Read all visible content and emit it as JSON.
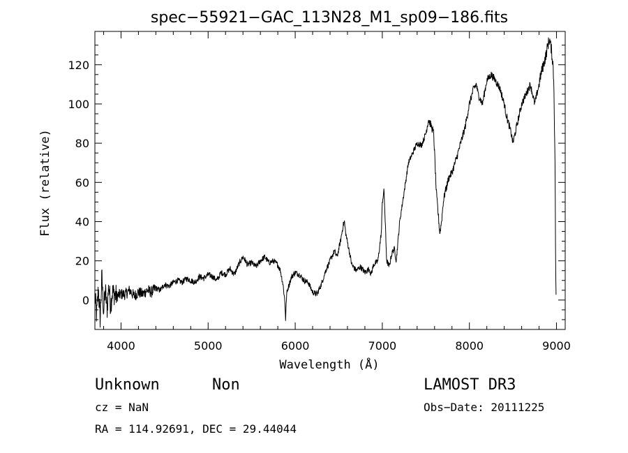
{
  "chart_data": {
    "type": "line",
    "title": "spec−55921−GAC_113N28_M1_sp09−186.fits",
    "xlabel": "Wavelength (Å)",
    "ylabel": "Flux (relative)",
    "xlim": [
      3700,
      9100
    ],
    "ylim": [
      -15,
      137
    ],
    "x_ticks": [
      4000,
      5000,
      6000,
      7000,
      8000,
      9000
    ],
    "y_ticks": [
      0,
      20,
      40,
      60,
      80,
      100,
      120
    ],
    "x_tick_labels": [
      "4000",
      "5000",
      "6000",
      "7000",
      "8000",
      "9000"
    ],
    "y_tick_labels": [
      "0",
      "20",
      "40",
      "60",
      "80",
      "100",
      "120"
    ],
    "grid": false,
    "series": [
      {
        "name": "flux",
        "x": [
          3700,
          3720,
          3740,
          3760,
          3780,
          3800,
          3820,
          3840,
          3860,
          3880,
          3900,
          3950,
          4000,
          4050,
          4100,
          4150,
          4200,
          4250,
          4300,
          4350,
          4400,
          4450,
          4500,
          4550,
          4600,
          4650,
          4700,
          4750,
          4800,
          4850,
          4900,
          4950,
          5000,
          5050,
          5100,
          5150,
          5200,
          5250,
          5300,
          5350,
          5400,
          5430,
          5450,
          5500,
          5550,
          5600,
          5650,
          5700,
          5750,
          5800,
          5830,
          5860,
          5880,
          5890,
          5900,
          5910,
          5930,
          5960,
          6000,
          6050,
          6100,
          6150,
          6200,
          6250,
          6270,
          6300,
          6350,
          6400,
          6450,
          6480,
          6520,
          6550,
          6565,
          6580,
          6620,
          6650,
          6700,
          6750,
          6800,
          6850,
          6870,
          6900,
          6950,
          6990,
          7000,
          7020,
          7050,
          7080,
          7100,
          7120,
          7140,
          7160,
          7180,
          7200,
          7250,
          7300,
          7350,
          7400,
          7450,
          7500,
          7530,
          7560,
          7590,
          7600,
          7610,
          7620,
          7640,
          7660,
          7680,
          7700,
          7720,
          7740,
          7760,
          7800,
          7850,
          7900,
          7950,
          8000,
          8050,
          8080,
          8100,
          8150,
          8200,
          8250,
          8300,
          8350,
          8400,
          8420,
          8450,
          8480,
          8500,
          8550,
          8600,
          8650,
          8700,
          8750,
          8800,
          8820,
          8850,
          8880,
          8900,
          8920,
          8940,
          8960,
          8970,
          8980,
          8985,
          8990,
          8995,
          9000
        ],
        "values": [
          2,
          -8,
          6,
          -10,
          12,
          -6,
          5,
          -5,
          8,
          -3,
          4,
          2,
          3,
          3,
          5,
          2,
          4,
          3,
          5,
          4,
          6,
          5,
          8,
          7,
          9,
          10,
          9,
          11,
          10,
          9,
          12,
          11,
          13,
          12,
          10,
          14,
          13,
          16,
          13,
          18,
          22,
          20,
          18,
          19,
          17,
          20,
          22,
          19,
          20,
          18,
          15,
          8,
          0,
          -10,
          2,
          5,
          8,
          12,
          14,
          13,
          10,
          9,
          4,
          3,
          5,
          8,
          15,
          20,
          25,
          22,
          30,
          38,
          40,
          34,
          25,
          18,
          15,
          17,
          14,
          16,
          13,
          18,
          20,
          35,
          50,
          56,
          20,
          17,
          22,
          25,
          26,
          20,
          30,
          40,
          55,
          70,
          75,
          80,
          79,
          85,
          92,
          89,
          85,
          75,
          65,
          55,
          45,
          34,
          40,
          50,
          55,
          58,
          62,
          65,
          72,
          80,
          88,
          100,
          108,
          110,
          105,
          100,
          112,
          115,
          112,
          108,
          100,
          95,
          90,
          85,
          80,
          90,
          100,
          105,
          110,
          100,
          110,
          115,
          120,
          125,
          130,
          133,
          128,
          120,
          110,
          80,
          60,
          20,
          2,
          1
        ]
      }
    ],
    "annotations": {
      "object_class": "Unknown",
      "subclass": "Non",
      "survey": "LAMOST DR3",
      "redshift": "cz = NaN",
      "obs_date": "Obs−Date: 20111225",
      "coordinates": "RA = 114.92691, DEC =  29.44044"
    }
  }
}
